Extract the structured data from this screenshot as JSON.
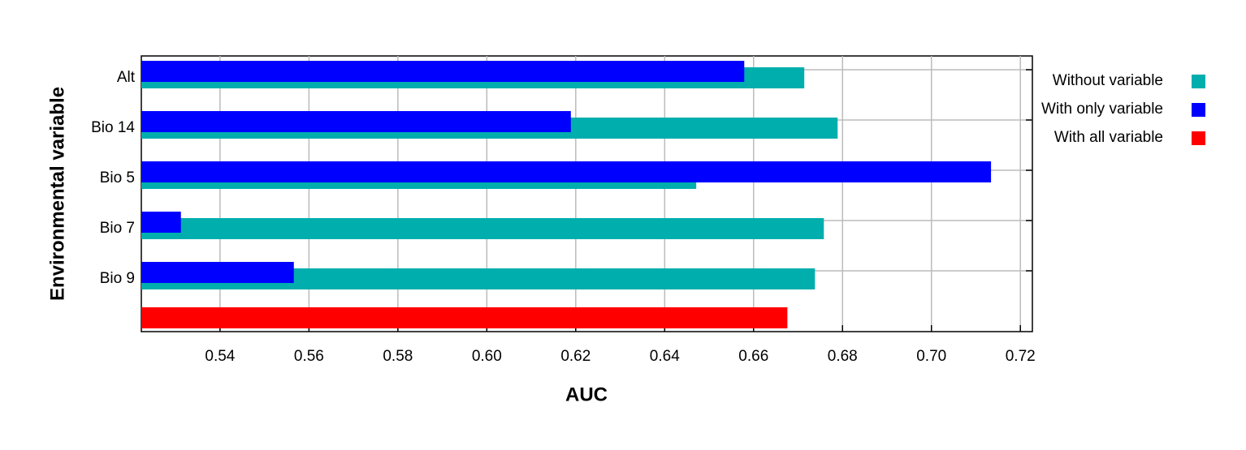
{
  "chart_data": {
    "type": "bar",
    "orientation": "horizontal",
    "xlabel": "AUC",
    "ylabel": "Environmental variable",
    "categories": [
      "Alt",
      "Bio 14",
      "Bio 5",
      "Bio 7",
      "Bio 9",
      null
    ],
    "series": [
      {
        "name": "Without variable",
        "color": "#00aeae",
        "values": [
          0.6714,
          0.6789,
          0.6471,
          0.6758,
          0.6738,
          null
        ]
      },
      {
        "name": "With only variable",
        "color": "#0000ff",
        "values": [
          0.6579,
          0.6189,
          0.7134,
          0.5312,
          0.5566,
          null
        ]
      },
      {
        "name": "With all variable",
        "color": "#ff0000",
        "values": [
          null,
          null,
          null,
          null,
          null,
          0.6676
        ]
      }
    ],
    "xlim": [
      0.5223,
      0.7227
    ],
    "xticks": [
      0.54,
      0.56,
      0.58,
      {
        "value": 0.6,
        "label": "0.60"
      },
      0.62,
      0.64,
      0.66,
      0.68,
      {
        "value": 0.7,
        "label": "0.70"
      },
      0.72
    ],
    "grid": true,
    "legend": "right"
  }
}
